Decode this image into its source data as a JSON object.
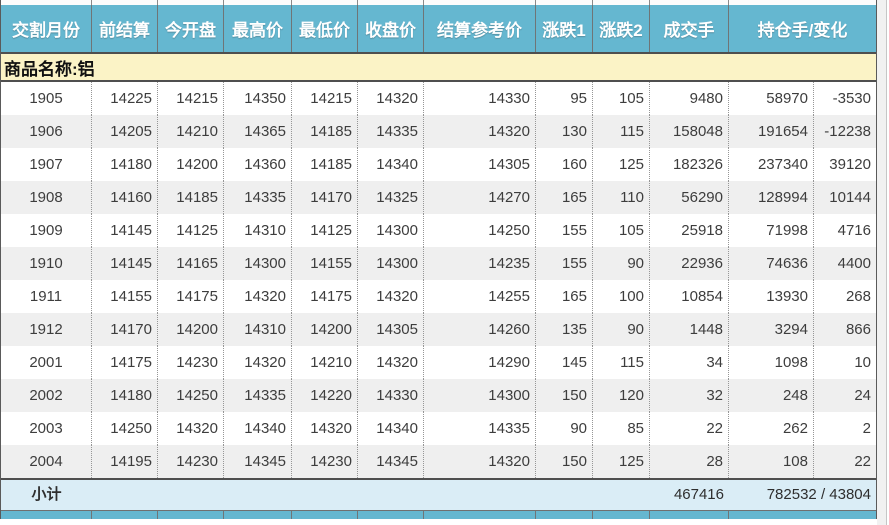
{
  "table": {
    "product_label": "商品名称:铝",
    "headers": [
      "交割月份",
      "前结算",
      "今开盘",
      "最高价",
      "最低价",
      "收盘价",
      "结算参考价",
      "涨跌1",
      "涨跌2",
      "成交手",
      "持仓手/变化"
    ],
    "column_keys": [
      "delivery-month",
      "prev-settlement",
      "open",
      "high",
      "low",
      "close",
      "settlement-ref",
      "change1",
      "change2",
      "volume",
      "open-interest",
      "oi-change"
    ],
    "rows": [
      [
        "1905",
        "14225",
        "14215",
        "14350",
        "14215",
        "14320",
        "14330",
        "95",
        "105",
        "9480",
        "58970",
        "-3530"
      ],
      [
        "1906",
        "14205",
        "14210",
        "14365",
        "14185",
        "14335",
        "14320",
        "130",
        "115",
        "158048",
        "191654",
        "-12238"
      ],
      [
        "1907",
        "14180",
        "14200",
        "14360",
        "14185",
        "14340",
        "14305",
        "160",
        "125",
        "182326",
        "237340",
        "39120"
      ],
      [
        "1908",
        "14160",
        "14185",
        "14335",
        "14170",
        "14325",
        "14270",
        "165",
        "110",
        "56290",
        "128994",
        "10144"
      ],
      [
        "1909",
        "14145",
        "14125",
        "14310",
        "14125",
        "14300",
        "14250",
        "155",
        "105",
        "25918",
        "71998",
        "4716"
      ],
      [
        "1910",
        "14145",
        "14165",
        "14300",
        "14155",
        "14300",
        "14235",
        "155",
        "90",
        "22936",
        "74636",
        "4400"
      ],
      [
        "1911",
        "14155",
        "14175",
        "14320",
        "14175",
        "14320",
        "14255",
        "165",
        "100",
        "10854",
        "13930",
        "268"
      ],
      [
        "1912",
        "14170",
        "14200",
        "14310",
        "14200",
        "14305",
        "14260",
        "135",
        "90",
        "1448",
        "3294",
        "866"
      ],
      [
        "2001",
        "14175",
        "14230",
        "14320",
        "14210",
        "14320",
        "14290",
        "145",
        "115",
        "34",
        "1098",
        "10"
      ],
      [
        "2002",
        "14180",
        "14250",
        "14335",
        "14220",
        "14330",
        "14300",
        "150",
        "120",
        "32",
        "248",
        "24"
      ],
      [
        "2003",
        "14250",
        "14320",
        "14340",
        "14320",
        "14340",
        "14335",
        "90",
        "85",
        "22",
        "262",
        "2"
      ],
      [
        "2004",
        "14195",
        "14230",
        "14345",
        "14230",
        "14345",
        "14320",
        "150",
        "125",
        "28",
        "108",
        "22"
      ]
    ],
    "subtotal": {
      "label": "小计",
      "volume_total": "467416",
      "oi_total": "782532 / 43804"
    }
  },
  "colors": {
    "header_bg": "#65b7d0",
    "product_bg": "#fbf3c6",
    "row_alt_bg": "#efefef",
    "subtotal_bg": "#daedf6",
    "border_dark": "#4f4f4f",
    "text_data": "#3d3d3d"
  }
}
